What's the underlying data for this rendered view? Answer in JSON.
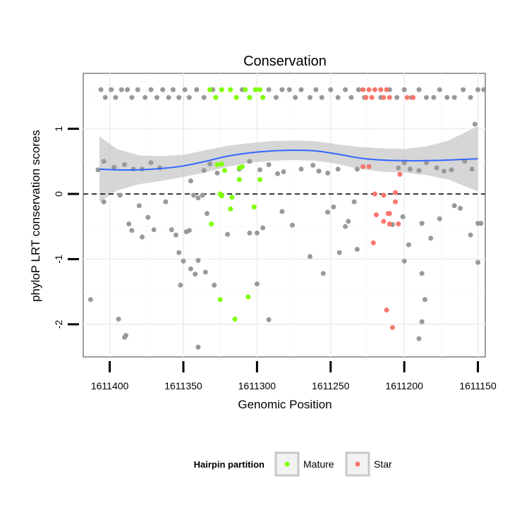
{
  "chart_data": {
    "type": "scatter",
    "title": "Conservation",
    "xlabel": "Genomic Position",
    "ylabel": "phyloP LRT conservation scores",
    "x_reversed": true,
    "xlim": [
      1611418,
      1611145
    ],
    "ylim": [
      -2.5,
      1.85
    ],
    "x_ticks": [
      1611400,
      1611350,
      1611300,
      1611250,
      1611200,
      1611150
    ],
    "x_tick_labels": [
      "1611400",
      "1611350",
      "1611300",
      "1611250",
      "1611200",
      "1611150"
    ],
    "y_ticks": [
      -2,
      -1,
      0,
      1
    ],
    "y_tick_labels": [
      "-2",
      "-1",
      "0",
      "1"
    ],
    "reference_line": {
      "y": 0,
      "style": "dashed"
    },
    "grid": true,
    "smooth": {
      "color": "#3366FF",
      "band_color": "#C8C8C8",
      "x": [
        1611407,
        1611395,
        1611380,
        1611365,
        1611350,
        1611335,
        1611320,
        1611305,
        1611290,
        1611275,
        1611260,
        1611245,
        1611230,
        1611215,
        1611200,
        1611185,
        1611170,
        1611150
      ],
      "y": [
        0.38,
        0.37,
        0.37,
        0.39,
        0.43,
        0.5,
        0.58,
        0.63,
        0.66,
        0.67,
        0.66,
        0.61,
        0.55,
        0.52,
        0.51,
        0.51,
        0.52,
        0.54
      ],
      "lower": [
        -0.12,
        0.05,
        0.15,
        0.2,
        0.26,
        0.33,
        0.42,
        0.48,
        0.51,
        0.52,
        0.51,
        0.46,
        0.38,
        0.34,
        0.33,
        0.29,
        0.22,
        0.04
      ],
      "upper": [
        0.88,
        0.69,
        0.59,
        0.58,
        0.6,
        0.67,
        0.74,
        0.78,
        0.81,
        0.82,
        0.81,
        0.76,
        0.72,
        0.7,
        0.69,
        0.73,
        0.82,
        1.04
      ]
    },
    "legend": {
      "title": "Hairpin partition",
      "position": "bottom",
      "entries": [
        {
          "name": "Mature",
          "color": "#7FFF00"
        },
        {
          "name": "Star",
          "color": "#F8766D"
        }
      ]
    },
    "series": [
      {
        "name": "",
        "color": "#999999",
        "points": [
          [
            1611406,
            1.6
          ],
          [
            1611403,
            1.48
          ],
          [
            1611399,
            1.6
          ],
          [
            1611396,
            1.48
          ],
          [
            1611392,
            1.6
          ],
          [
            1611388,
            1.6
          ],
          [
            1611385,
            1.48
          ],
          [
            1611381,
            1.6
          ],
          [
            1611376,
            1.48
          ],
          [
            1611372,
            1.6
          ],
          [
            1611368,
            1.48
          ],
          [
            1611364,
            1.6
          ],
          [
            1611360,
            1.48
          ],
          [
            1611357,
            1.6
          ],
          [
            1611353,
            1.48
          ],
          [
            1611349,
            1.6
          ],
          [
            1611346,
            1.48
          ],
          [
            1611341,
            1.6
          ],
          [
            1611336,
            1.48
          ],
          [
            1611330,
            1.6
          ],
          [
            1611310,
            1.6
          ],
          [
            1611305,
            1.48
          ],
          [
            1611301,
            1.6
          ],
          [
            1611296,
            1.48
          ],
          [
            1611292,
            1.6
          ],
          [
            1611287,
            1.48
          ],
          [
            1611283,
            1.6
          ],
          [
            1611278,
            1.6
          ],
          [
            1611274,
            1.48
          ],
          [
            1611270,
            1.6
          ],
          [
            1611264,
            1.48
          ],
          [
            1611260,
            1.6
          ],
          [
            1611256,
            1.48
          ],
          [
            1611250,
            1.6
          ],
          [
            1611245,
            1.48
          ],
          [
            1611240,
            1.6
          ],
          [
            1611236,
            1.48
          ],
          [
            1611231,
            1.6
          ],
          [
            1611227,
            1.48
          ],
          [
            1611216,
            1.48
          ],
          [
            1611210,
            1.6
          ],
          [
            1611205,
            1.48
          ],
          [
            1611200,
            1.6
          ],
          [
            1611195,
            1.48
          ],
          [
            1611190,
            1.6
          ],
          [
            1611185,
            1.48
          ],
          [
            1611180,
            1.48
          ],
          [
            1611176,
            1.6
          ],
          [
            1611171,
            1.48
          ],
          [
            1611166,
            1.48
          ],
          [
            1611160,
            1.6
          ],
          [
            1611155,
            1.48
          ],
          [
            1611150,
            1.6
          ],
          [
            1611146,
            1.6
          ],
          [
            1611408,
            0.37
          ],
          [
            1611404,
            0.5
          ],
          [
            1611397,
            0.41
          ],
          [
            1611390,
            0.45
          ],
          [
            1611384,
            0.38
          ],
          [
            1611378,
            0.38
          ],
          [
            1611372,
            0.48
          ],
          [
            1611366,
            0.4
          ],
          [
            1611345,
            0.2
          ],
          [
            1611336,
            0.36
          ],
          [
            1611332,
            0.46
          ],
          [
            1611327,
            0.32
          ],
          [
            1611312,
            0.38
          ],
          [
            1611305,
            0.5
          ],
          [
            1611298,
            0.37
          ],
          [
            1611292,
            0.45
          ],
          [
            1611286,
            0.31
          ],
          [
            1611282,
            0.34
          ],
          [
            1611270,
            0.38
          ],
          [
            1611262,
            0.44
          ],
          [
            1611258,
            0.35
          ],
          [
            1611252,
            0.32
          ],
          [
            1611245,
            0.38
          ],
          [
            1611232,
            0.38
          ],
          [
            1611204,
            0.4
          ],
          [
            1611200,
            0.48
          ],
          [
            1611196,
            0.38
          ],
          [
            1611190,
            0.36
          ],
          [
            1611185,
            0.48
          ],
          [
            1611178,
            0.4
          ],
          [
            1611173,
            0.35
          ],
          [
            1611168,
            0.37
          ],
          [
            1611159,
            0.5
          ],
          [
            1611154,
            0.38
          ],
          [
            1611152,
            1.07
          ],
          [
            1611404,
            -0.12
          ],
          [
            1611393,
            -0.02
          ],
          [
            1611387,
            -0.46
          ],
          [
            1611385,
            -0.56
          ],
          [
            1611380,
            -0.18
          ],
          [
            1611378,
            -0.66
          ],
          [
            1611374,
            -0.36
          ],
          [
            1611370,
            -0.55
          ],
          [
            1611362,
            -0.12
          ],
          [
            1611358,
            -0.55
          ],
          [
            1611355,
            -0.63
          ],
          [
            1611348,
            -0.58
          ],
          [
            1611346,
            -0.56
          ],
          [
            1611343,
            -0.02
          ],
          [
            1611340,
            -0.06
          ],
          [
            1611337,
            -0.02
          ],
          [
            1611334,
            -0.3
          ],
          [
            1611320,
            -0.62
          ],
          [
            1611305,
            -0.6
          ],
          [
            1611300,
            -0.6
          ],
          [
            1611296,
            -0.52
          ],
          [
            1611283,
            -0.27
          ],
          [
            1611276,
            -0.48
          ],
          [
            1611252,
            -0.28
          ],
          [
            1611248,
            -0.2
          ],
          [
            1611240,
            -0.5
          ],
          [
            1611238,
            -0.42
          ],
          [
            1611234,
            -0.12
          ],
          [
            1611208,
            -0.47
          ],
          [
            1611201,
            -0.35
          ],
          [
            1611197,
            -0.78
          ],
          [
            1611188,
            -0.45
          ],
          [
            1611182,
            -0.68
          ],
          [
            1611176,
            -0.38
          ],
          [
            1611166,
            -0.18
          ],
          [
            1611162,
            -0.22
          ],
          [
            1611155,
            -0.63
          ],
          [
            1611150,
            -0.45
          ],
          [
            1611353,
            -0.9
          ],
          [
            1611350,
            -1.03
          ],
          [
            1611352,
            -1.4
          ],
          [
            1611345,
            -1.15
          ],
          [
            1611342,
            -1.23
          ],
          [
            1611340,
            -1.02
          ],
          [
            1611335,
            -1.2
          ],
          [
            1611329,
            -1.4
          ],
          [
            1611300,
            -1.38
          ],
          [
            1611264,
            -0.96
          ],
          [
            1611255,
            -1.22
          ],
          [
            1611244,
            -0.9
          ],
          [
            1611232,
            -0.85
          ],
          [
            1611200,
            -1.03
          ],
          [
            1611188,
            -1.22
          ],
          [
            1611413,
            -1.62
          ],
          [
            1611394,
            -1.92
          ],
          [
            1611390,
            -2.2
          ],
          [
            1611389,
            -2.17
          ],
          [
            1611340,
            -2.35
          ],
          [
            1611292,
            -1.93
          ],
          [
            1611188,
            -1.96
          ],
          [
            1611186,
            -1.62
          ],
          [
            1611190,
            -2.22
          ],
          [
            1611150,
            -1.05
          ],
          [
            1611148,
            -0.45
          ]
        ]
      },
      {
        "name": "Mature",
        "color": "#7FFF00",
        "points": [
          [
            1611332,
            1.6
          ],
          [
            1611328,
            1.48
          ],
          [
            1611324,
            1.6
          ],
          [
            1611318,
            1.6
          ],
          [
            1611314,
            1.48
          ],
          [
            1611308,
            1.6
          ],
          [
            1611305,
            1.48
          ],
          [
            1611301,
            1.6
          ],
          [
            1611298,
            1.6
          ],
          [
            1611296,
            1.48
          ],
          [
            1611327,
            0.45
          ],
          [
            1611324,
            0.46
          ],
          [
            1611322,
            0.36
          ],
          [
            1611312,
            0.4
          ],
          [
            1611310,
            0.42
          ],
          [
            1611325,
            0.0
          ],
          [
            1611324,
            -0.03
          ],
          [
            1611317,
            -0.05
          ],
          [
            1611312,
            0.22
          ],
          [
            1611298,
            0.22
          ],
          [
            1611318,
            -0.23
          ],
          [
            1611302,
            -0.2
          ],
          [
            1611331,
            -0.46
          ],
          [
            1611325,
            -1.62
          ],
          [
            1611306,
            -1.58
          ],
          [
            1611315,
            -1.92
          ]
        ]
      },
      {
        "name": "Star",
        "color": "#F8766D",
        "points": [
          [
            1611228,
            1.6
          ],
          [
            1611224,
            1.6
          ],
          [
            1611220,
            1.6
          ],
          [
            1611216,
            1.6
          ],
          [
            1611212,
            1.6
          ],
          [
            1611226,
            1.48
          ],
          [
            1611222,
            1.48
          ],
          [
            1611214,
            1.48
          ],
          [
            1611210,
            1.48
          ],
          [
            1611198,
            1.48
          ],
          [
            1611194,
            1.48
          ],
          [
            1611228,
            0.42
          ],
          [
            1611224,
            0.42
          ],
          [
            1611220,
            0.0
          ],
          [
            1611214,
            -0.02
          ],
          [
            1611206,
            0.02
          ],
          [
            1611219,
            -0.32
          ],
          [
            1611214,
            -0.42
          ],
          [
            1611210,
            -0.46
          ],
          [
            1611211,
            -0.3
          ],
          [
            1611204,
            -0.46
          ],
          [
            1611221,
            -0.75
          ],
          [
            1611206,
            -0.12
          ],
          [
            1611210,
            -0.3
          ],
          [
            1611212,
            -1.78
          ],
          [
            1611208,
            -2.05
          ],
          [
            1611203,
            0.3
          ]
        ]
      }
    ]
  }
}
